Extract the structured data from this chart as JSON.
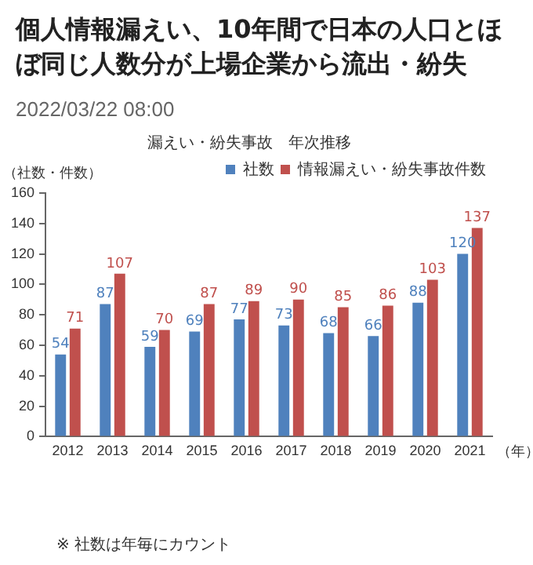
{
  "chart_data": {
    "type": "bar",
    "title": "漏えい・紛失事故　年次推移",
    "ylabel": "（社数・件数）",
    "xlabel": "（年）",
    "annotations": [
      "個人情報漏えい、10年間で日本の人口とほぼ同じ人数分が上場企業から流出・紛失",
      "2022/03/22 08:00",
      "※ 社数は年毎にカウント"
    ],
    "categories": [
      "2012",
      "2013",
      "2014",
      "2015",
      "2016",
      "2017",
      "2018",
      "2019",
      "2020",
      "2021"
    ],
    "series": [
      {
        "name": "社数",
        "color": "#4f81bd",
        "values": [
          54,
          87,
          59,
          69,
          77,
          73,
          68,
          66,
          88,
          120
        ]
      },
      {
        "name": "情報漏えい・紛失事故件数",
        "color": "#c0504d",
        "values": [
          71,
          107,
          70,
          87,
          89,
          90,
          85,
          86,
          103,
          137
        ]
      }
    ],
    "ylim": [
      0,
      160
    ],
    "yticks": [
      0,
      20,
      40,
      60,
      80,
      100,
      120,
      140,
      160
    ],
    "grid": false,
    "legend": "top right",
    "data_labels": true
  }
}
